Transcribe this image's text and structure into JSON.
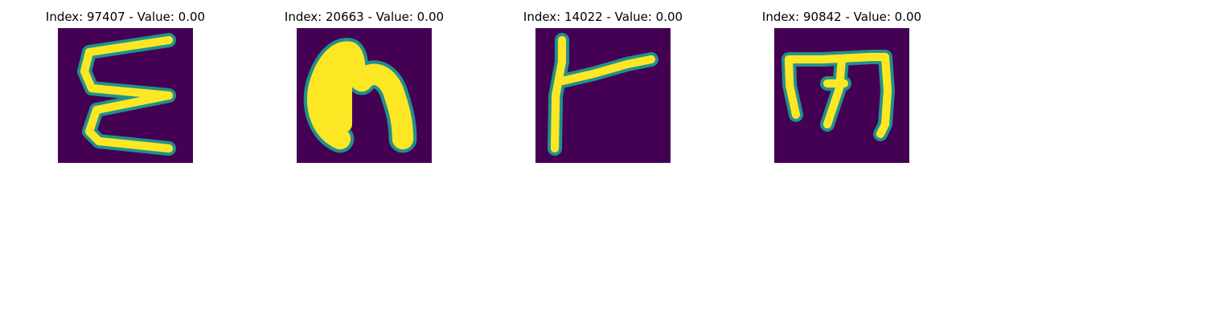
{
  "figure": {
    "background": "#ffffff",
    "colormap": {
      "low": "#440154",
      "mid": "#21918c",
      "high": "#fde725"
    },
    "panels": [
      {
        "title": "Index: 97407 - Value: 0.00",
        "index": 97407,
        "value": "0.00",
        "glyph": "zigzag-e-stroke"
      },
      {
        "title": "Index: 20663 - Value: 0.00",
        "index": 20663,
        "value": "0.00",
        "glyph": "arch-n-stroke"
      },
      {
        "title": "Index: 14022 - Value: 0.00",
        "index": 14022,
        "value": "0.00",
        "glyph": "r-shaped-stroke"
      },
      {
        "title": "Index: 90842 - Value: 0.00",
        "index": 90842,
        "value": "0.00",
        "glyph": "m-shaped-stroke"
      }
    ]
  }
}
